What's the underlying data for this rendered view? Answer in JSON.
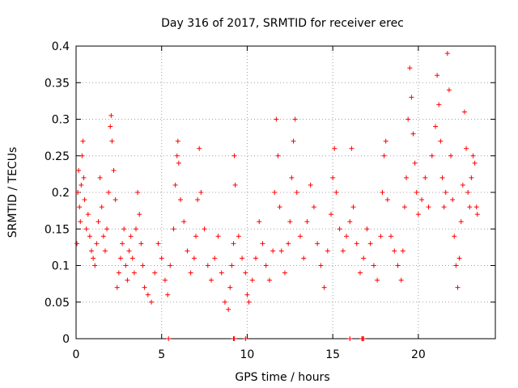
{
  "chart_data": {
    "type": "scatter",
    "title": "Day 316 of 2017, SRMTID for receiver erec",
    "xlabel": "GPS time / hours",
    "ylabel": "SRMTID / TECUs",
    "xlim": [
      0,
      24.5
    ],
    "ylim": [
      0,
      0.4
    ],
    "grid": true,
    "marker": "+",
    "color": "#ff0000",
    "x_ticks": [
      "0",
      "5",
      "10",
      "15",
      "20"
    ],
    "x_tick_values": [
      0,
      5,
      10,
      15,
      20
    ],
    "y_ticks": [
      "0",
      "0.05",
      "0.1",
      "0.15",
      "0.2",
      "0.25",
      "0.3",
      "0.35",
      "0.4"
    ],
    "y_tick_values": [
      0,
      0.05,
      0.1,
      0.15,
      0.2,
      0.25,
      0.3,
      0.35,
      0.4
    ],
    "series": [
      {
        "name": "SRMTID",
        "points": [
          [
            0.05,
            0.13
          ],
          [
            0.1,
            0.2
          ],
          [
            0.15,
            0.23
          ],
          [
            0.2,
            0.18
          ],
          [
            0.25,
            0.16
          ],
          [
            0.3,
            0.21
          ],
          [
            0.35,
            0.25
          ],
          [
            0.4,
            0.27
          ],
          [
            0.45,
            0.22
          ],
          [
            0.5,
            0.19
          ],
          [
            0.6,
            0.15
          ],
          [
            0.7,
            0.17
          ],
          [
            0.8,
            0.14
          ],
          [
            0.9,
            0.12
          ],
          [
            1.0,
            0.11
          ],
          [
            1.1,
            0.1
          ],
          [
            1.2,
            0.13
          ],
          [
            1.3,
            0.16
          ],
          [
            1.4,
            0.22
          ],
          [
            1.5,
            0.18
          ],
          [
            1.6,
            0.14
          ],
          [
            1.7,
            0.12
          ],
          [
            1.8,
            0.15
          ],
          [
            1.9,
            0.2
          ],
          [
            2.0,
            0.29
          ],
          [
            2.05,
            0.305
          ],
          [
            2.1,
            0.27
          ],
          [
            2.2,
            0.23
          ],
          [
            2.3,
            0.19
          ],
          [
            2.4,
            0.07
          ],
          [
            2.5,
            0.09
          ],
          [
            2.6,
            0.11
          ],
          [
            2.7,
            0.13
          ],
          [
            2.8,
            0.15
          ],
          [
            2.9,
            0.1
          ],
          [
            3.0,
            0.08
          ],
          [
            3.1,
            0.12
          ],
          [
            3.2,
            0.14
          ],
          [
            3.3,
            0.11
          ],
          [
            3.4,
            0.09
          ],
          [
            3.5,
            0.15
          ],
          [
            3.6,
            0.2
          ],
          [
            3.7,
            0.17
          ],
          [
            3.8,
            0.13
          ],
          [
            3.9,
            0.1
          ],
          [
            4.0,
            0.07
          ],
          [
            4.2,
            0.06
          ],
          [
            4.4,
            0.05
          ],
          [
            4.6,
            0.09
          ],
          [
            4.8,
            0.13
          ],
          [
            5.0,
            0.11
          ],
          [
            5.2,
            0.08
          ],
          [
            5.35,
            0.06
          ],
          [
            5.5,
            0.1
          ],
          [
            5.7,
            0.15
          ],
          [
            5.8,
            0.21
          ],
          [
            5.9,
            0.25
          ],
          [
            5.95,
            0.27
          ],
          [
            6.0,
            0.24
          ],
          [
            6.1,
            0.19
          ],
          [
            6.3,
            0.16
          ],
          [
            6.5,
            0.12
          ],
          [
            6.7,
            0.09
          ],
          [
            6.9,
            0.11
          ],
          [
            7.0,
            0.14
          ],
          [
            7.1,
            0.19
          ],
          [
            7.2,
            0.26
          ],
          [
            7.3,
            0.2
          ],
          [
            7.5,
            0.15
          ],
          [
            7.7,
            0.1
          ],
          [
            7.9,
            0.08
          ],
          [
            8.1,
            0.11
          ],
          [
            8.3,
            0.14
          ],
          [
            8.5,
            0.09
          ],
          [
            8.7,
            0.05
          ],
          [
            8.9,
            0.04
          ],
          [
            9.0,
            0.07
          ],
          [
            9.1,
            0.1
          ],
          [
            9.2,
            0.13
          ],
          [
            9.25,
            0.25
          ],
          [
            9.3,
            0.21
          ],
          [
            9.5,
            0.14
          ],
          [
            9.7,
            0.11
          ],
          [
            9.9,
            0.09
          ],
          [
            10.0,
            0.06
          ],
          [
            10.1,
            0.05
          ],
          [
            10.3,
            0.08
          ],
          [
            10.5,
            0.11
          ],
          [
            10.7,
            0.16
          ],
          [
            10.9,
            0.13
          ],
          [
            11.1,
            0.1
          ],
          [
            11.3,
            0.08
          ],
          [
            11.5,
            0.12
          ],
          [
            11.6,
            0.2
          ],
          [
            11.7,
            0.3
          ],
          [
            11.8,
            0.25
          ],
          [
            11.9,
            0.18
          ],
          [
            12.0,
            0.12
          ],
          [
            12.2,
            0.09
          ],
          [
            12.4,
            0.13
          ],
          [
            12.5,
            0.16
          ],
          [
            12.6,
            0.22
          ],
          [
            12.7,
            0.27
          ],
          [
            12.8,
            0.3
          ],
          [
            12.9,
            0.2
          ],
          [
            13.1,
            0.14
          ],
          [
            13.3,
            0.11
          ],
          [
            13.5,
            0.16
          ],
          [
            13.7,
            0.21
          ],
          [
            13.9,
            0.18
          ],
          [
            14.1,
            0.13
          ],
          [
            14.3,
            0.1
          ],
          [
            14.5,
            0.07
          ],
          [
            14.7,
            0.12
          ],
          [
            14.9,
            0.17
          ],
          [
            15.0,
            0.22
          ],
          [
            15.1,
            0.26
          ],
          [
            15.2,
            0.2
          ],
          [
            15.4,
            0.15
          ],
          [
            15.6,
            0.12
          ],
          [
            15.8,
            0.14
          ],
          [
            16.0,
            0.16
          ],
          [
            16.1,
            0.26
          ],
          [
            16.2,
            0.18
          ],
          [
            16.4,
            0.13
          ],
          [
            16.6,
            0.09
          ],
          [
            16.8,
            0.11
          ],
          [
            17.0,
            0.15
          ],
          [
            17.2,
            0.13
          ],
          [
            17.4,
            0.1
          ],
          [
            17.6,
            0.08
          ],
          [
            17.8,
            0.14
          ],
          [
            17.9,
            0.2
          ],
          [
            18.0,
            0.25
          ],
          [
            18.1,
            0.27
          ],
          [
            18.2,
            0.19
          ],
          [
            18.4,
            0.14
          ],
          [
            18.6,
            0.12
          ],
          [
            18.8,
            0.1
          ],
          [
            19.0,
            0.08
          ],
          [
            19.1,
            0.12
          ],
          [
            19.2,
            0.18
          ],
          [
            19.3,
            0.22
          ],
          [
            19.4,
            0.3
          ],
          [
            19.5,
            0.37
          ],
          [
            19.6,
            0.33
          ],
          [
            19.7,
            0.28
          ],
          [
            19.8,
            0.24
          ],
          [
            19.9,
            0.2
          ],
          [
            20.0,
            0.17
          ],
          [
            20.2,
            0.19
          ],
          [
            20.4,
            0.22
          ],
          [
            20.6,
            0.18
          ],
          [
            20.8,
            0.25
          ],
          [
            21.0,
            0.29
          ],
          [
            21.1,
            0.36
          ],
          [
            21.2,
            0.32
          ],
          [
            21.3,
            0.27
          ],
          [
            21.4,
            0.22
          ],
          [
            21.5,
            0.18
          ],
          [
            21.6,
            0.2
          ],
          [
            21.7,
            0.39
          ],
          [
            21.8,
            0.34
          ],
          [
            21.9,
            0.25
          ],
          [
            22.0,
            0.19
          ],
          [
            22.1,
            0.14
          ],
          [
            22.2,
            0.1
          ],
          [
            22.3,
            0.07
          ],
          [
            22.4,
            0.11
          ],
          [
            22.5,
            0.16
          ],
          [
            22.6,
            0.21
          ],
          [
            22.7,
            0.31
          ],
          [
            22.8,
            0.26
          ],
          [
            22.9,
            0.2
          ],
          [
            23.0,
            0.18
          ],
          [
            23.1,
            0.22
          ],
          [
            23.2,
            0.25
          ],
          [
            23.3,
            0.24
          ],
          [
            23.4,
            0.18
          ],
          [
            23.45,
            0.17
          ],
          [
            5.4,
            0.0
          ],
          [
            9.2,
            0.0
          ],
          [
            9.25,
            0.0
          ],
          [
            9.9,
            0.0
          ],
          [
            16.0,
            0.0
          ],
          [
            16.7,
            0.0
          ],
          [
            16.75,
            0.0
          ],
          [
            16.8,
            0.0
          ]
        ]
      }
    ]
  }
}
